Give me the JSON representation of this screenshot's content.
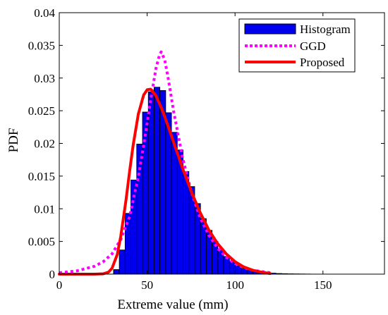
{
  "chart_data": {
    "type": "bar",
    "xlabel": "Extreme value (mm)",
    "ylabel": "PDF",
    "xlim": [
      0,
      185
    ],
    "ylim": [
      0,
      0.04
    ],
    "x_ticks": [
      0,
      50,
      100,
      150
    ],
    "x_tick_labels": [
      "0",
      "50",
      "100",
      "150"
    ],
    "y_ticks": [
      0,
      0.005,
      0.01,
      0.015,
      0.02,
      0.025,
      0.03,
      0.035,
      0.04
    ],
    "y_tick_labels": [
      "0",
      "0.005",
      "0.01",
      "0.015",
      "0.02",
      "0.025",
      "0.03",
      "0.035",
      "0.04"
    ],
    "grid": false,
    "legend_position": "top-right",
    "histogram": {
      "name": "Histogram",
      "color": "#0000ee",
      "edge_color": "#000000",
      "bin_width": 3.3,
      "bins": [
        {
          "x": 32.5,
          "value": 0.0007
        },
        {
          "x": 35.8,
          "value": 0.0037
        },
        {
          "x": 39.1,
          "value": 0.0093
        },
        {
          "x": 42.4,
          "value": 0.0144
        },
        {
          "x": 45.7,
          "value": 0.0199
        },
        {
          "x": 49.0,
          "value": 0.0248
        },
        {
          "x": 52.3,
          "value": 0.0279
        },
        {
          "x": 55.6,
          "value": 0.0286
        },
        {
          "x": 58.9,
          "value": 0.0281
        },
        {
          "x": 62.2,
          "value": 0.0247
        },
        {
          "x": 65.5,
          "value": 0.0217
        },
        {
          "x": 68.8,
          "value": 0.019
        },
        {
          "x": 72.1,
          "value": 0.0157
        },
        {
          "x": 75.4,
          "value": 0.0134
        },
        {
          "x": 78.7,
          "value": 0.0108
        },
        {
          "x": 82.0,
          "value": 0.0085
        },
        {
          "x": 85.3,
          "value": 0.0067
        },
        {
          "x": 88.6,
          "value": 0.005
        },
        {
          "x": 91.9,
          "value": 0.0037
        },
        {
          "x": 95.2,
          "value": 0.0027
        },
        {
          "x": 98.5,
          "value": 0.0019
        },
        {
          "x": 101.8,
          "value": 0.0013
        },
        {
          "x": 105.1,
          "value": 0.0009
        },
        {
          "x": 108.4,
          "value": 0.0006
        },
        {
          "x": 111.7,
          "value": 0.0004
        },
        {
          "x": 115.0,
          "value": 0.0003
        },
        {
          "x": 118.3,
          "value": 0.0002
        },
        {
          "x": 121.6,
          "value": 0.00015
        },
        {
          "x": 124.9,
          "value": 0.0001
        },
        {
          "x": 128.2,
          "value": 7e-05
        },
        {
          "x": 131.5,
          "value": 5e-05
        },
        {
          "x": 134.8,
          "value": 4e-05
        },
        {
          "x": 138.1,
          "value": 3e-05
        },
        {
          "x": 141.4,
          "value": 2e-05
        },
        {
          "x": 144.7,
          "value": 1e-05
        }
      ]
    },
    "series": [
      {
        "name": "GGD",
        "style": "dotted",
        "color": "#ff00ff",
        "x": [
          0,
          10,
          20,
          25,
          30,
          35,
          40,
          45,
          48,
          50,
          52,
          55,
          57,
          58,
          60,
          62,
          65,
          70,
          75,
          80,
          85,
          90,
          95,
          100,
          105,
          110,
          120
        ],
        "y": [
          0.0002,
          0.0005,
          0.0012,
          0.0019,
          0.0031,
          0.0053,
          0.0088,
          0.0149,
          0.0197,
          0.0231,
          0.0267,
          0.0315,
          0.0335,
          0.034,
          0.0328,
          0.0299,
          0.025,
          0.018,
          0.0127,
          0.0087,
          0.006,
          0.004,
          0.0026,
          0.0016,
          0.001,
          0.0006,
          0.0002
        ]
      },
      {
        "name": "Proposed",
        "style": "solid",
        "color": "#ff0000",
        "x": [
          0,
          20,
          25,
          28,
          30,
          33,
          35,
          38,
          40,
          42,
          45,
          48,
          50,
          52,
          55,
          58,
          60,
          63,
          65,
          70,
          75,
          80,
          85,
          90,
          95,
          100,
          105,
          110,
          115,
          120
        ],
        "y": [
          0,
          0,
          5e-05,
          0.0003,
          0.0009,
          0.003,
          0.0058,
          0.0114,
          0.0157,
          0.0197,
          0.0245,
          0.0274,
          0.0282,
          0.0283,
          0.0273,
          0.0255,
          0.0241,
          0.0218,
          0.0202,
          0.0163,
          0.0127,
          0.0095,
          0.0068,
          0.0047,
          0.0031,
          0.0019,
          0.0011,
          0.0006,
          0.0003,
          0.0001
        ]
      }
    ]
  }
}
